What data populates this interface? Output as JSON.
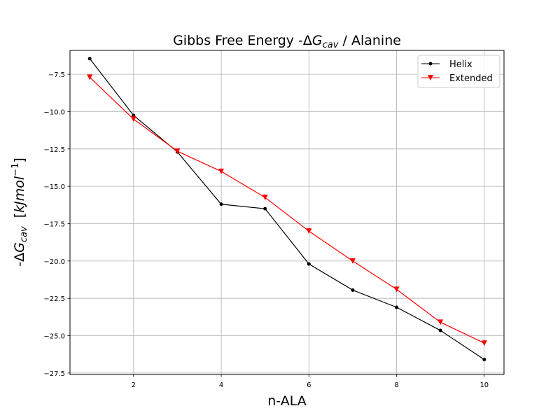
{
  "chart_data": {
    "type": "line",
    "title": {
      "prefix": "Gibbs Free Energy -Δ",
      "symbol": "G",
      "subscript": "cav",
      "suffix": " / Alanine"
    },
    "xlabel": "n-ALA",
    "ylabel": {
      "prefix": "-Δ",
      "symbol": "G",
      "subscript": "cav",
      "unit_open": "  [",
      "unit_base": "kJmol",
      "unit_exp": "−1",
      "unit_close": "]"
    },
    "xlim": [
      0.55,
      10.45
    ],
    "ylim": [
      -27.6,
      -5.9
    ],
    "xticks": [
      2,
      4,
      6,
      8,
      10
    ],
    "yticks": [
      -7.5,
      -10.0,
      -12.5,
      -15.0,
      -17.5,
      -20.0,
      -22.5,
      -25.0,
      -27.5
    ],
    "grid": true,
    "legend_position": "top-right",
    "x": [
      1,
      2,
      3,
      4,
      5,
      6,
      7,
      8,
      9,
      10
    ],
    "series": [
      {
        "name": "Helix",
        "color": "#000000",
        "marker": "circle",
        "values": [
          -6.45,
          -10.25,
          -12.7,
          -16.2,
          -16.5,
          -20.2,
          -21.95,
          -23.1,
          -24.65,
          -26.6
        ]
      },
      {
        "name": "Extended",
        "color": "#ff0000",
        "marker": "triangle-down",
        "values": [
          -7.7,
          -10.5,
          -12.65,
          -14.0,
          -15.75,
          -18.0,
          -20.0,
          -21.9,
          -24.1,
          -25.5
        ]
      }
    ]
  }
}
